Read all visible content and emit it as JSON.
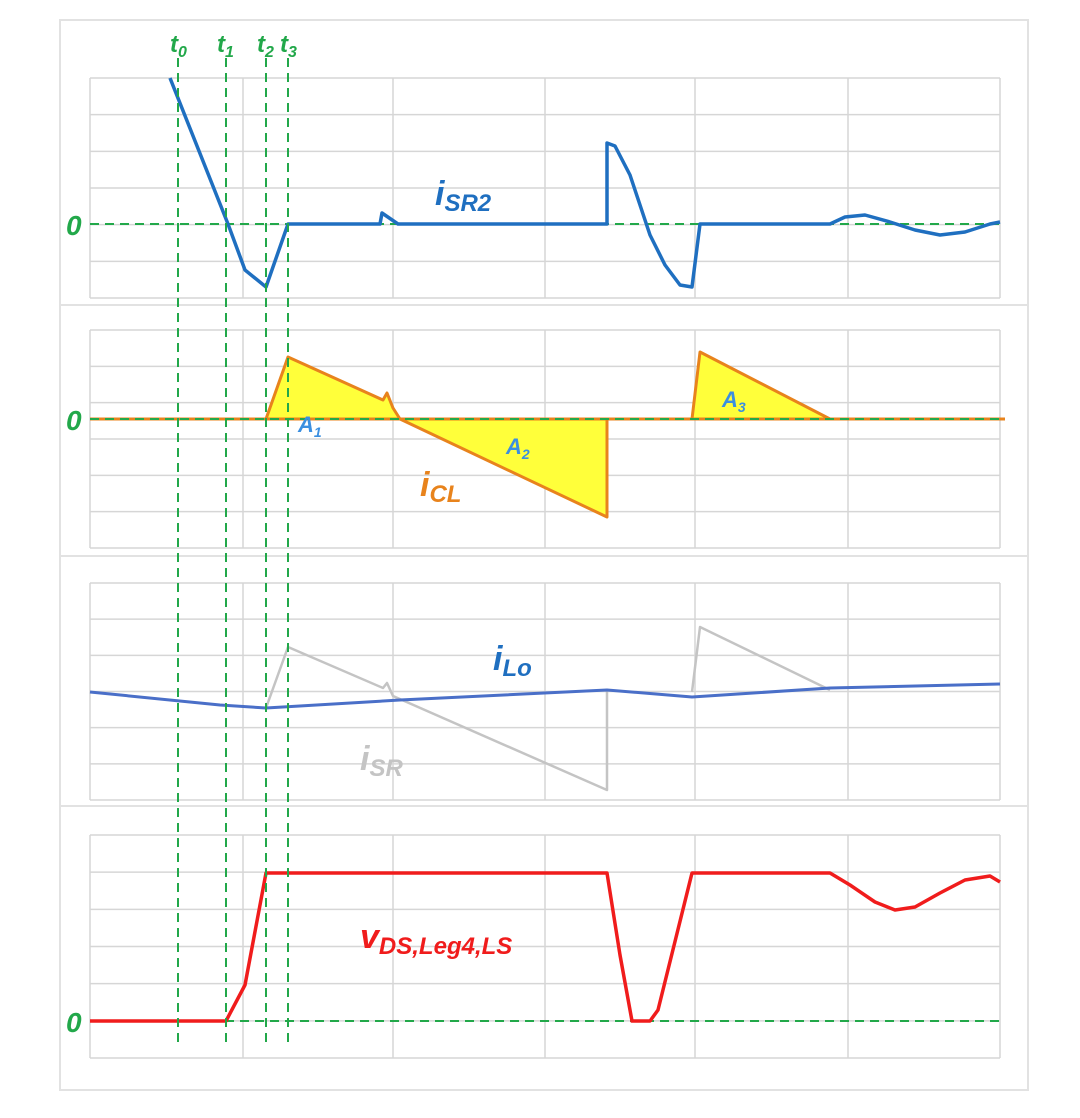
{
  "time_markers": [
    {
      "main": "t",
      "sub": "0"
    },
    {
      "main": "t",
      "sub": "1"
    },
    {
      "main": "t",
      "sub": "2"
    },
    {
      "main": "t",
      "sub": "3"
    }
  ],
  "zero_label": "0",
  "panels": [
    {
      "signal": {
        "main": "i",
        "sub": "SR2"
      }
    },
    {
      "signal": {
        "main": "i",
        "sub": "CL"
      },
      "areas": [
        {
          "main": "A",
          "sub": "1"
        },
        {
          "main": "A",
          "sub": "2"
        },
        {
          "main": "A",
          "sub": "3"
        }
      ]
    },
    {
      "signals": [
        {
          "main": "i",
          "sub": "Lo"
        },
        {
          "main": "i",
          "sub": "SR"
        }
      ]
    },
    {
      "signal": {
        "main": "v",
        "sub": "DS,Leg4,LS"
      }
    }
  ],
  "colors": {
    "marker": "#22a84a",
    "isr2": "#1f6fc0",
    "icl": "#e8831c",
    "area_fill": "#ffff3a",
    "area_label": "#3b8fe0",
    "ilo": "#4a6fc8",
    "isr": "#c4c4c4",
    "vds": "#f01c1c",
    "grid": "#d6d6d6"
  }
}
